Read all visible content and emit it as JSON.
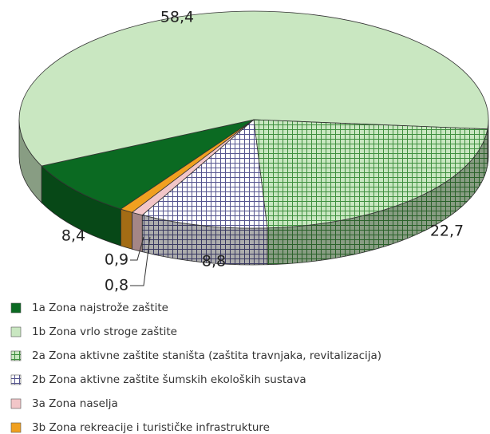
{
  "chart_data": {
    "type": "pie",
    "categories": [
      "1a Zona najstrože zaštite",
      "1b Zona vrlo stroge zaštite",
      "2a Zona aktivne zaštite staništa (zaštita travnjaka, revitalizacija)",
      "2b Zona aktivne zaštite šumskih ekoloških sustava",
      "3a Zona naselja",
      "3b Zona rekreacije i turističke infrastrukture"
    ],
    "values": [
      8.4,
      58.4,
      22.7,
      8.8,
      0.8,
      0.9
    ],
    "value_labels": [
      "8,4",
      "58,4",
      "22,7",
      "8,8",
      "0,8",
      "0,9"
    ],
    "colors": [
      "#0b6a22",
      "#c9e7c1",
      "#c9e7c1",
      "#ffffff",
      "#f2c6c8",
      "#f0a020"
    ],
    "hatch_colors": [
      null,
      null,
      "#3f8f3f",
      "#55558f",
      null,
      null
    ],
    "legend": "bottom-left"
  }
}
